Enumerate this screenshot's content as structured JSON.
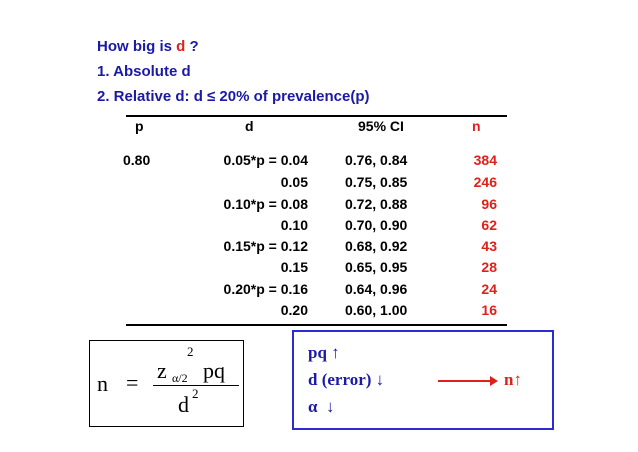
{
  "header": {
    "line1_pre": "How big is ",
    "line1_d": "d",
    "line1_post": " ?",
    "line2": "1.  Absolute d",
    "line3": "2.  Relative  d:  d ≤ 20% of prevalence(p)"
  },
  "table": {
    "columns": [
      "p",
      "d",
      "95% CI",
      "n"
    ],
    "rows": [
      {
        "p": "0.80",
        "d": "0.05*p = 0.04",
        "ci": "0.76, 0.84",
        "n": "384"
      },
      {
        "p": "",
        "d": "0.05",
        "ci": "0.75, 0.85",
        "n": "246"
      },
      {
        "p": "",
        "d": "0.10*p = 0.08",
        "ci": "0.72, 0.88",
        "n": "96"
      },
      {
        "p": "",
        "d": "0.10",
        "ci": "0.70, 0.90",
        "n": "62"
      },
      {
        "p": "",
        "d": "0.15*p = 0.12",
        "ci": "0.68, 0.92",
        "n": "43"
      },
      {
        "p": "",
        "d": "0.15",
        "ci": "0.65, 0.95",
        "n": "28"
      },
      {
        "p": "",
        "d": "0.20*p = 0.16",
        "ci": "0.64, 0.96",
        "n": "24"
      },
      {
        "p": "",
        "d": "0.20",
        "ci": "0.60, 1.00",
        "n": "16"
      }
    ]
  },
  "formula": {
    "lhs": "n",
    "eq": "=",
    "z": "z",
    "z_sub": "α/2",
    "z_sup": "2",
    "pq": "pq",
    "den": "d",
    "den_sup": "2"
  },
  "effects": {
    "line1": "pq",
    "line2": "d (error)",
    "line3": "α",
    "result": "n",
    "up_arrow": "↑",
    "down_arrow": "↓"
  },
  "colors": {
    "blue": "#1a1aa6",
    "red": "#e0201a",
    "box_border": "#2b2bd6"
  }
}
